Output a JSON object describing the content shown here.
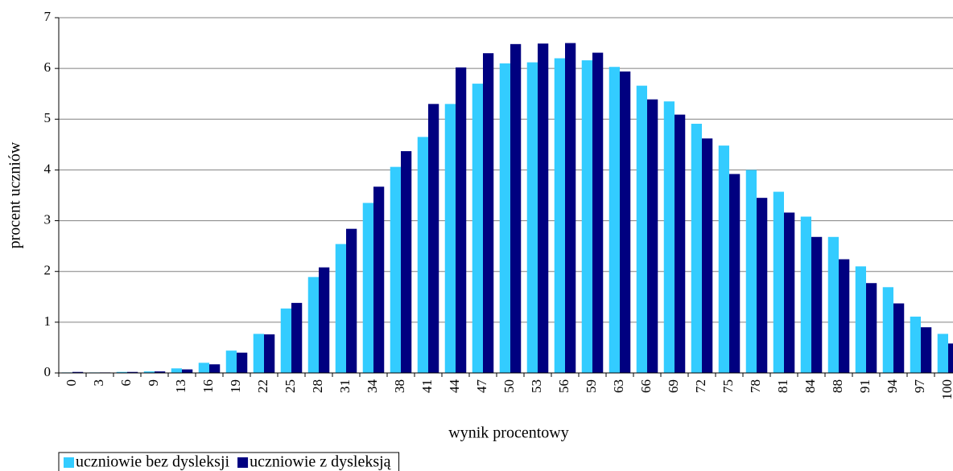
{
  "chart_data": {
    "type": "bar",
    "x_label": "wynik procentowy",
    "y_label": "procent uczniów",
    "categories": [
      "0",
      "3",
      "6",
      "9",
      "13",
      "16",
      "19",
      "22",
      "25",
      "28",
      "31",
      "34",
      "38",
      "41",
      "44",
      "47",
      "50",
      "53",
      "56",
      "59",
      "63",
      "66",
      "69",
      "72",
      "75",
      "78",
      "81",
      "84",
      "88",
      "91",
      "94",
      "97",
      "100"
    ],
    "series": [
      {
        "name": "uczniowie bez dysleksji",
        "color": "#33ccff",
        "values": [
          0.01,
          0.01,
          0.02,
          0.03,
          0.09,
          0.2,
          0.44,
          0.77,
          1.27,
          1.89,
          2.54,
          3.35,
          4.06,
          4.65,
          5.3,
          5.7,
          6.1,
          6.12,
          6.2,
          6.16,
          6.03,
          5.66,
          5.35,
          4.91,
          4.48,
          4.0,
          3.57,
          3.08,
          2.68,
          2.1,
          1.69,
          1.11,
          0.77
        ]
      },
      {
        "name": "uczniowie z dysleksją",
        "color": "#000080",
        "values": [
          0.02,
          0.01,
          0.02,
          0.03,
          0.07,
          0.17,
          0.4,
          0.76,
          1.38,
          2.08,
          2.84,
          3.67,
          4.37,
          5.3,
          6.02,
          6.3,
          6.48,
          6.49,
          6.5,
          6.31,
          5.94,
          5.39,
          5.09,
          4.62,
          3.92,
          3.45,
          3.16,
          2.68,
          2.24,
          1.77,
          1.37,
          0.9,
          0.58
        ]
      }
    ],
    "ylim": [
      0,
      7
    ],
    "yticks": [
      0,
      1,
      2,
      3,
      4,
      5,
      6,
      7
    ],
    "grid": true,
    "legend": "bottom-left"
  }
}
